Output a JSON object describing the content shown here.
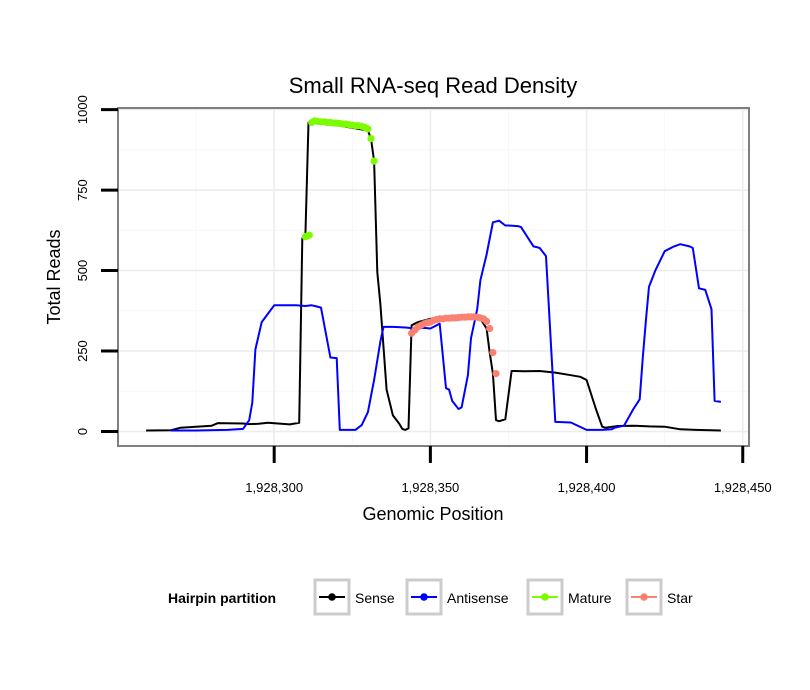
{
  "chart_data": {
    "type": "line",
    "title": "Small RNA-seq Read Density",
    "xlabel": "Genomic Position",
    "ylabel": "Total Reads",
    "xlim": [
      1928250,
      1928452
    ],
    "ylim": [
      -45,
      1005
    ],
    "x_ticks": [
      1928300,
      1928350,
      1928400,
      1928450
    ],
    "x_tick_labels": [
      "1,928,300",
      "1,928,350",
      "1,928,400",
      "1,928,450"
    ],
    "y_ticks": [
      0,
      250,
      500,
      750,
      1000
    ],
    "y_tick_labels": [
      "0",
      "250",
      "500",
      "750",
      "1000"
    ],
    "grid": true,
    "legend": {
      "title": "Hairpin partition",
      "position": "bottom",
      "entries": [
        "Sense",
        "Antisense",
        "Mature",
        "Star"
      ]
    },
    "colors": {
      "Sense": "#000000",
      "Antisense": "#0000ff",
      "Mature": "#7cfc00",
      "Star": "#fa8072"
    },
    "series": [
      {
        "name": "Sense",
        "style": "line",
        "x": [
          1928259,
          1928267,
          1928270,
          1928275,
          1928280,
          1928282,
          1928290,
          1928292,
          1928295,
          1928298,
          1928305,
          1928308,
          1928309,
          1928310,
          1928311,
          1928312,
          1928330,
          1928331,
          1928332,
          1928333,
          1928334,
          1928336,
          1928338,
          1928340,
          1928341,
          1928342,
          1928343,
          1928344,
          1928345,
          1928346,
          1928350,
          1928360,
          1928366,
          1928368,
          1928369,
          1928370,
          1928371,
          1928372,
          1928374,
          1928376,
          1928377,
          1928380,
          1928385,
          1928390,
          1928395,
          1928398,
          1928400,
          1928403,
          1928405,
          1928406,
          1928410,
          1928415,
          1928420,
          1928425,
          1928430,
          1928435,
          1928443
        ],
        "y": [
          3,
          4,
          12,
          15,
          18,
          26,
          25,
          23,
          24,
          27,
          22,
          27,
          600,
          610,
          960,
          965,
          935,
          910,
          840,
          495,
          395,
          130,
          50,
          25,
          8,
          5,
          10,
          330,
          335,
          340,
          350,
          355,
          350,
          320,
          245,
          180,
          35,
          32,
          38,
          188,
          188,
          187,
          188,
          183,
          175,
          170,
          160,
          70,
          15,
          12,
          17,
          18,
          16,
          15,
          7,
          5,
          3
        ]
      },
      {
        "name": "Antisense",
        "style": "line",
        "x": [
          1928267,
          1928275,
          1928285,
          1928290,
          1928292,
          1928293,
          1928294,
          1928296,
          1928300,
          1928307,
          1928310,
          1928312,
          1928313,
          1928315,
          1928318,
          1928320,
          1928321,
          1928322,
          1928326,
          1928328,
          1928330,
          1928332,
          1928334,
          1928335,
          1928338,
          1928342,
          1928345,
          1928348,
          1928350,
          1928352,
          1928353,
          1928355,
          1928356,
          1928357,
          1928359,
          1928360,
          1928362,
          1928363,
          1928365,
          1928366,
          1928368,
          1928370,
          1928372,
          1928374,
          1928375,
          1928378,
          1928379,
          1928383,
          1928384,
          1928385,
          1928387,
          1928390,
          1928395,
          1928400,
          1928405,
          1928408,
          1928409,
          1928412,
          1928415,
          1928417,
          1928418,
          1928419,
          1928420,
          1928422,
          1928425,
          1928428,
          1928430,
          1928433,
          1928434,
          1928436,
          1928438,
          1928440,
          1928441,
          1928443
        ],
        "y": [
          3,
          3,
          5,
          8,
          35,
          90,
          255,
          340,
          392,
          392,
          390,
          392,
          390,
          385,
          230,
          228,
          5,
          5,
          5,
          20,
          60,
          160,
          280,
          325,
          325,
          323,
          320,
          322,
          320,
          330,
          335,
          135,
          130,
          95,
          70,
          75,
          175,
          290,
          380,
          470,
          550,
          650,
          655,
          640,
          640,
          638,
          635,
          575,
          573,
          570,
          545,
          30,
          28,
          5,
          5,
          7,
          12,
          18,
          70,
          100,
          230,
          345,
          450,
          500,
          560,
          575,
          582,
          575,
          570,
          445,
          440,
          380,
          95,
          92
        ]
      },
      {
        "name": "Mature",
        "style": "points",
        "x": [
          1928310,
          1928310.6,
          1928311.2,
          1928312,
          1928313,
          1928314,
          1928315,
          1928316,
          1928317,
          1928318,
          1928319,
          1928320,
          1928321,
          1928322,
          1928323,
          1928324,
          1928325,
          1928326,
          1928327,
          1928328,
          1928329,
          1928330,
          1928331,
          1928332
        ],
        "y": [
          605,
          608,
          610,
          960,
          965,
          963,
          962,
          962,
          960,
          960,
          958,
          958,
          957,
          955,
          955,
          953,
          952,
          950,
          950,
          948,
          945,
          940,
          910,
          840
        ]
      },
      {
        "name": "Star",
        "style": "points",
        "x": [
          1928344,
          1928345,
          1928346,
          1928347,
          1928348,
          1928349,
          1928350,
          1928351,
          1928352,
          1928353,
          1928354,
          1928355,
          1928356,
          1928357,
          1928358,
          1928359,
          1928360,
          1928361,
          1928362,
          1928363,
          1928364,
          1928365,
          1928366,
          1928367,
          1928368,
          1928369,
          1928370,
          1928371
        ],
        "y": [
          305,
          315,
          325,
          330,
          335,
          338,
          340,
          345,
          348,
          350,
          350,
          352,
          352,
          353,
          353,
          354,
          355,
          355,
          356,
          356,
          356,
          355,
          353,
          350,
          342,
          320,
          245,
          180
        ]
      }
    ]
  }
}
